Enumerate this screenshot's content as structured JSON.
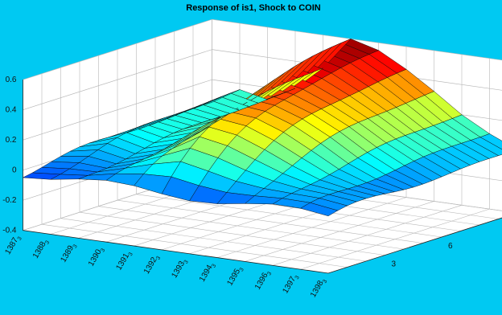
{
  "figure": {
    "background": "#00c9f2"
  },
  "chart_data": {
    "type": "surface",
    "title": "Response of is1, Shock to COIN",
    "xlabel": "",
    "ylabel": "",
    "zlabel": "",
    "zlim": [
      -0.4,
      0.6
    ],
    "z_ticks": [
      "-0.4",
      "-0.2",
      "0",
      "0.2",
      "0.4",
      "0.6"
    ],
    "date_ticks": [
      {
        "year": "1398",
        "q": "3"
      },
      {
        "year": "1397",
        "q": "3"
      },
      {
        "year": "1396",
        "q": "3"
      },
      {
        "year": "1395",
        "q": "3"
      },
      {
        "year": "1394",
        "q": "3"
      },
      {
        "year": "1393",
        "q": "3"
      },
      {
        "year": "1392",
        "q": "3"
      },
      {
        "year": "1391",
        "q": "3"
      },
      {
        "year": "1390",
        "q": "3"
      },
      {
        "year": "1389",
        "q": "3"
      },
      {
        "year": "1388",
        "q": "3"
      },
      {
        "year": "1387",
        "q": "3"
      }
    ],
    "horizon_ticks": [
      "3",
      "6"
    ],
    "horizon_range": [
      0,
      10
    ],
    "grid": true,
    "colormap": "jet",
    "surface_profile_at_horizon_10": [
      {
        "date": "1398.3",
        "z": 0.02
      },
      {
        "date": "1397.3",
        "z": 0.1
      },
      {
        "date": "1396.3",
        "z": 0.2
      },
      {
        "date": "1395.3",
        "z": 0.33
      },
      {
        "date": "1394.3",
        "z": 0.45
      },
      {
        "date": "1393.3",
        "z": 0.55
      },
      {
        "date": "1392.3",
        "z": 0.6
      },
      {
        "date": "1391.3",
        "z": 0.38
      },
      {
        "date": "1390.3",
        "z": 0.22
      },
      {
        "date": "1389.3",
        "z": 0.12
      },
      {
        "date": "1388.3",
        "z": 0.16
      },
      {
        "date": "1387.3",
        "z": 0.05
      }
    ]
  }
}
